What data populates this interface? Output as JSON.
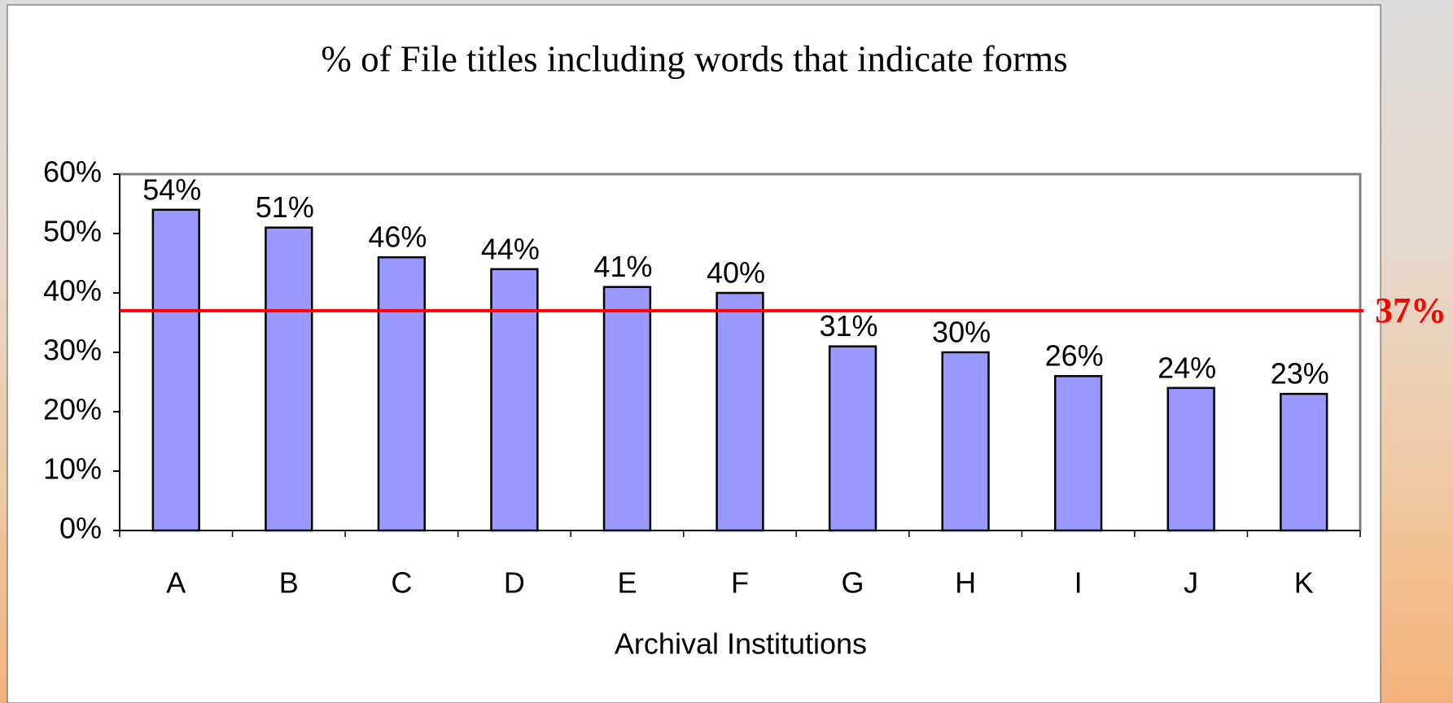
{
  "chart_data": {
    "type": "bar",
    "title": "% of File titles including words that indicate forms",
    "x_label": "Archival Institutions",
    "categories": [
      "A",
      "B",
      "C",
      "D",
      "E",
      "F",
      "G",
      "H",
      "I",
      "J",
      "K"
    ],
    "values": [
      54,
      51,
      46,
      44,
      41,
      40,
      31,
      30,
      26,
      24,
      23
    ],
    "value_labels": [
      "54%",
      "51%",
      "46%",
      "44%",
      "41%",
      "40%",
      "31%",
      "30%",
      "26%",
      "24%",
      "23%"
    ],
    "color": "#9999ff",
    "ylim": [
      0,
      60
    ],
    "yticks": [
      {
        "value": 0,
        "label": "0%"
      },
      {
        "value": 10,
        "label": "10%"
      },
      {
        "value": 20,
        "label": "20%"
      },
      {
        "value": 30,
        "label": "30%"
      },
      {
        "value": 40,
        "label": "40%"
      },
      {
        "value": 50,
        "label": "50%"
      },
      {
        "value": 60,
        "label": "60%"
      }
    ],
    "reference_line": {
      "value": 37,
      "label": "37%",
      "color": "#ff0000"
    }
  }
}
